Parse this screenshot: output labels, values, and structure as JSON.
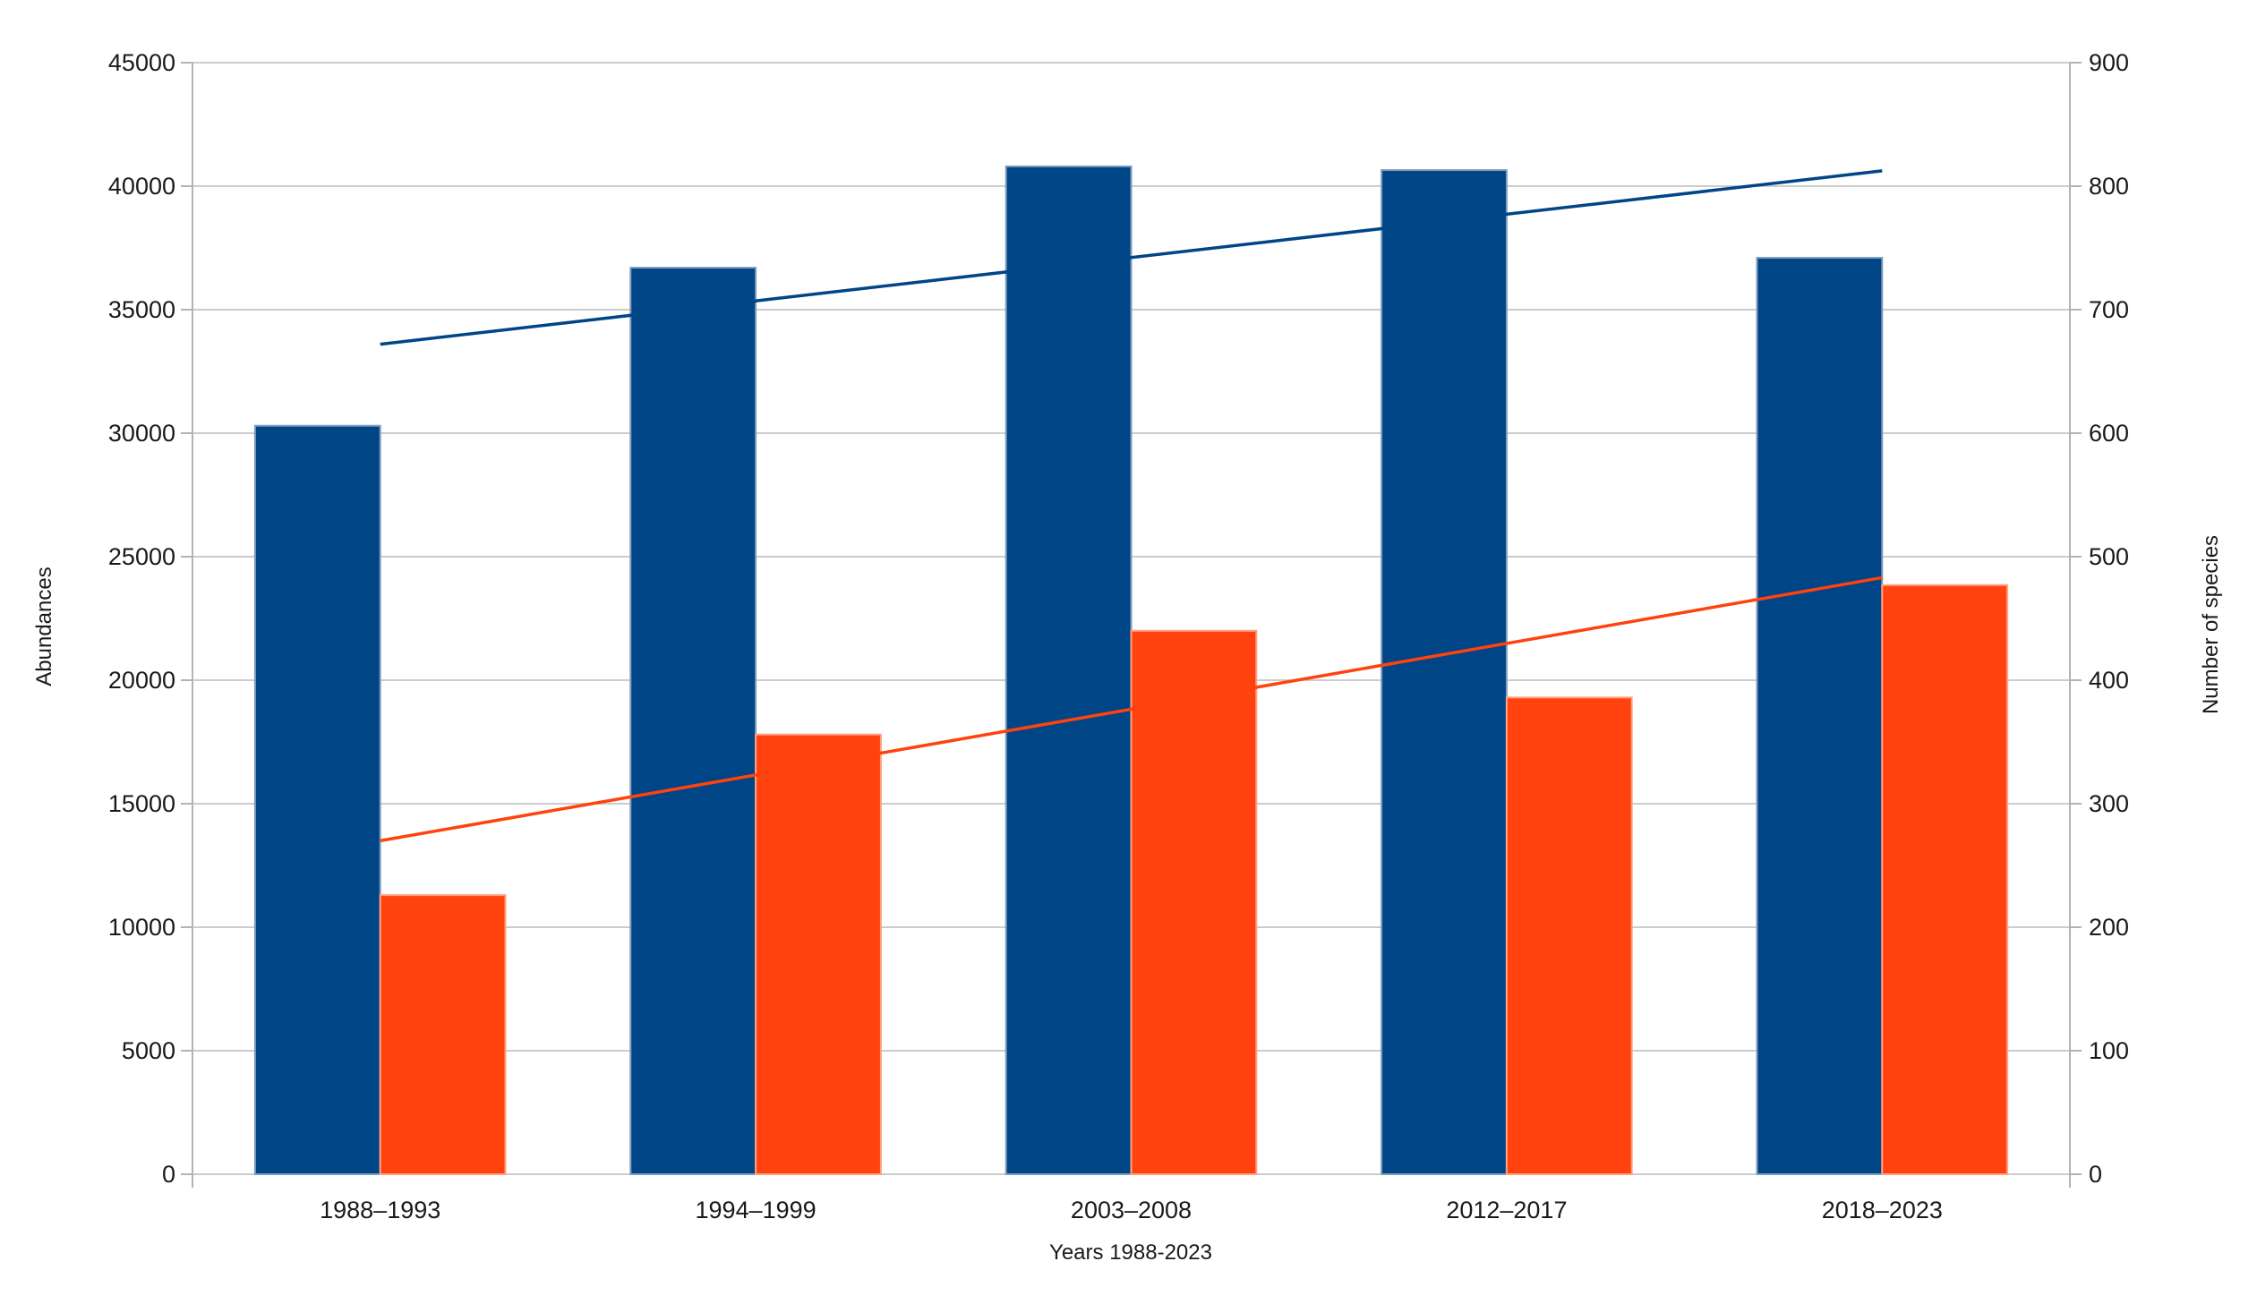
{
  "chart_data": {
    "type": "bar",
    "title": "",
    "categories": [
      "1988–1993",
      "1994–1999",
      "2003–2008",
      "2012–2017",
      "2018–2023"
    ],
    "series": [
      {
        "name": "Abundances",
        "axis": "left",
        "color": "#004586",
        "edge_color": "#7e9dbd",
        "values": [
          30300,
          36700,
          40800,
          40650,
          37100
        ]
      },
      {
        "name": "Number of species",
        "axis": "right",
        "color": "#FF420E",
        "edge_color": "#ffa183",
        "values": [
          226,
          356,
          440,
          386,
          477
        ]
      }
    ],
    "trendlines": [
      {
        "name": "abundances-linear-trend",
        "axis": "left",
        "color": "#004586",
        "start_value": 33600,
        "end_value": 40620
      },
      {
        "name": "species-linear-trend",
        "axis": "right",
        "color": "#FF420E",
        "start_value": 270,
        "end_value": 483
      }
    ],
    "xlabel": "Years 1988-2023",
    "ylabel_left": "Abundances",
    "ylabel_right": "Number of species",
    "ylim_left": [
      0,
      45000
    ],
    "ylim_right": [
      0,
      900
    ],
    "yticks_left": [
      0,
      5000,
      10000,
      15000,
      20000,
      25000,
      30000,
      35000,
      40000,
      45000
    ],
    "yticks_right": [
      0,
      100,
      200,
      300,
      400,
      500,
      600,
      700,
      800,
      900
    ],
    "grid": true,
    "legend": "none"
  },
  "colors": {
    "background": "#ffffff",
    "gridline": "#cccccc",
    "axis_line": "#b3b3b3",
    "text": "#1a1a1a"
  }
}
